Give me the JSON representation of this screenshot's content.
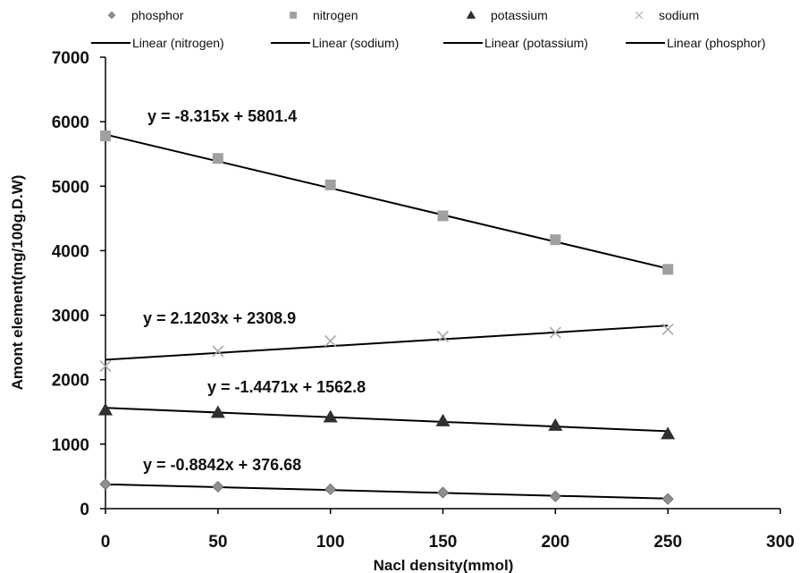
{
  "chart_data": {
    "type": "scatter",
    "title": "",
    "xlabel": "Nacl density(mmol)",
    "ylabel": "Amont element(mg/100g.D.W)",
    "xlim": [
      0,
      300
    ],
    "ylim": [
      0,
      7000
    ],
    "x_ticks": [
      "0",
      "50",
      "100",
      "150",
      "200",
      "250",
      "300"
    ],
    "y_ticks": [
      "0",
      "1000",
      "2000",
      "3000",
      "4000",
      "5000",
      "6000",
      "7000"
    ],
    "grid": false,
    "legend_position": "top",
    "x": [
      0,
      50,
      100,
      150,
      200,
      250
    ],
    "series": [
      {
        "name": "phosphor",
        "marker": "diamond",
        "color": "#8f8f8f",
        "values": [
          380,
          340,
          300,
          250,
          190,
          150
        ]
      },
      {
        "name": "nitrogen",
        "marker": "square",
        "color": "#a0a0a0",
        "values": [
          5780,
          5430,
          5020,
          4540,
          4170,
          3710
        ]
      },
      {
        "name": "potassium",
        "marker": "triangle",
        "color": "#303030",
        "values": [
          1530,
          1490,
          1420,
          1360,
          1290,
          1160
        ]
      },
      {
        "name": "sodium",
        "marker": "x",
        "color": "#a8a8a8",
        "values": [
          2210,
          2440,
          2600,
          2670,
          2730,
          2780
        ]
      }
    ],
    "trendlines": [
      {
        "name": "Linear (nitrogen)",
        "slope": -8.315,
        "intercept": 5801.4,
        "equation": "y = -8.315x + 5801.4"
      },
      {
        "name": "Linear (sodium)",
        "slope": 2.1203,
        "intercept": 2308.9,
        "equation": "y = 2.1203x + 2308.9"
      },
      {
        "name": "Linear (potassium)",
        "slope": -1.4471,
        "intercept": 1562.8,
        "equation": "y = -1.4471x + 1562.8"
      },
      {
        "name": "Linear (phosphor)",
        "slope": -0.8842,
        "intercept": 376.68,
        "equation": "y = -0.8842x + 376.68"
      }
    ]
  }
}
